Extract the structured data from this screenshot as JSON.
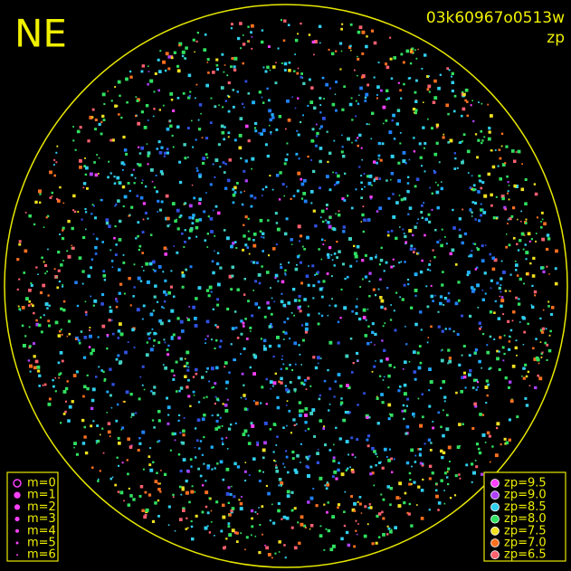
{
  "corner_label": "NE",
  "image_id": "03k60967o0513w",
  "color_key": "zp",
  "magnitude_legend": {
    "items": [
      "m=0",
      "m=1",
      "m=2",
      "m=3",
      "m=4",
      "m=5",
      "m=6"
    ]
  },
  "zp_legend": {
    "items": [
      {
        "label": "zp=9.5",
        "color": "#ff40ff"
      },
      {
        "label": "zp=9.0",
        "color": "#b040ff"
      },
      {
        "label": "zp=8.5",
        "color": "#30d0f0"
      },
      {
        "label": "zp=8.0",
        "color": "#30e060"
      },
      {
        "label": "zp=7.5",
        "color": "#f0e020"
      },
      {
        "label": "zp=7.0",
        "color": "#ff7020"
      },
      {
        "label": "zp=6.5",
        "color": "#ff6070"
      }
    ]
  }
}
